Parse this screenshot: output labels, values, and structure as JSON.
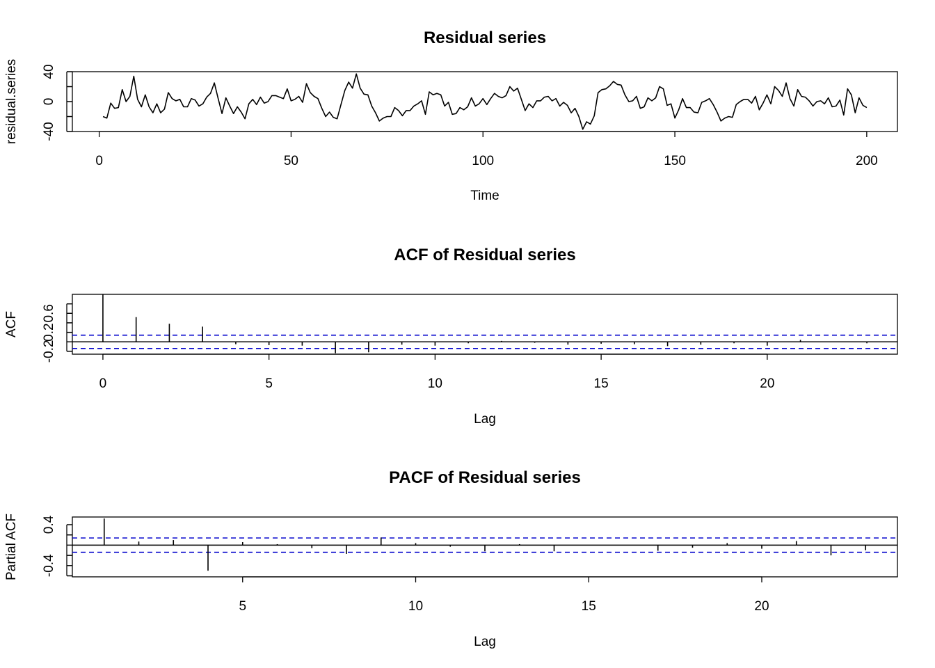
{
  "chart_data": [
    {
      "type": "line",
      "title": "Residual series",
      "xlabel": "Time",
      "ylabel": "residual.series",
      "xlim": [
        -7,
        208
      ],
      "ylim": [
        -40,
        40
      ],
      "xticks": [
        0,
        50,
        100,
        150,
        200
      ],
      "yticks": [
        -40,
        0,
        40
      ],
      "series": [
        {
          "values": [
            -20,
            -22,
            -2,
            -9,
            -8,
            16,
            0,
            7,
            34,
            3,
            -7,
            9,
            -7,
            -15,
            -3,
            -15,
            -10,
            12,
            4,
            1,
            3,
            -7,
            -7,
            4,
            2,
            -6,
            -3,
            6,
            11,
            25,
            4,
            -16,
            5,
            -6,
            -16,
            -7,
            -14,
            -23,
            -3,
            3,
            -4,
            6,
            -2,
            0,
            8,
            8,
            6,
            4,
            17,
            1,
            3,
            7,
            -1,
            24,
            12,
            7,
            4,
            -9,
            -20,
            -14,
            -21,
            -23,
            -4,
            15,
            26,
            18,
            37,
            18,
            10,
            9,
            -6,
            -15,
            -26,
            -22,
            -20,
            -20,
            -8,
            -12,
            -19,
            -12,
            -12,
            -6,
            -3,
            1,
            -17,
            13,
            9,
            11,
            9,
            -6,
            -1,
            -17,
            -16,
            -8,
            -11,
            -7,
            5,
            -6,
            -3,
            4,
            -4,
            4,
            11,
            7,
            5,
            8,
            20,
            14,
            18,
            3,
            -12,
            -3,
            -8,
            1,
            1,
            6,
            7,
            1,
            4,
            -6,
            -1,
            -5,
            -15,
            -9,
            -20,
            -37,
            -27,
            -30,
            -19,
            12,
            16,
            17,
            21,
            27,
            23,
            22,
            9,
            0,
            1,
            7,
            -9,
            -7,
            5,
            1,
            5,
            20,
            17,
            -5,
            -3,
            -22,
            -11,
            4,
            -8,
            -8,
            -14,
            -15,
            -1,
            1,
            4,
            -4,
            -14,
            -26,
            -22,
            -20,
            -21,
            -4,
            0,
            3,
            3,
            -2,
            7,
            -11,
            -2,
            9,
            -3,
            20,
            15,
            7,
            25,
            4,
            -6,
            16,
            7,
            6,
            1,
            -6,
            0,
            1,
            -3,
            5,
            -7,
            -6,
            2,
            -18,
            17,
            9,
            -15,
            5,
            -5,
            -8
          ]
        }
      ]
    },
    {
      "type": "bar",
      "title": "ACF of Residual series",
      "xlabel": "Lag",
      "ylabel": "ACF",
      "xlim": [
        -0.92,
        23.92
      ],
      "ylim": [
        -0.26,
        1.0
      ],
      "xticks": [
        0,
        5,
        10,
        15,
        20
      ],
      "yticks": [
        -0.2,
        0.2,
        0.6
      ],
      "x": [
        0,
        1,
        2,
        3,
        4,
        5,
        6,
        7,
        8,
        9,
        10,
        11,
        12,
        13,
        14,
        15,
        16,
        17,
        18,
        19,
        20,
        21,
        22,
        23
      ],
      "values": [
        1.0,
        0.52,
        0.38,
        0.32,
        -0.05,
        -0.07,
        -0.08,
        -0.24,
        -0.22,
        -0.06,
        -0.08,
        -0.03,
        0.02,
        -0.02,
        -0.06,
        -0.04,
        -0.05,
        -0.09,
        -0.06,
        -0.03,
        -0.08,
        0.04,
        0.0,
        -0.03
      ],
      "conf_band": 0.14
    },
    {
      "type": "bar",
      "title": "PACF of Residual series",
      "xlabel": "Lag",
      "ylabel": "Partial ACF",
      "xlim": [
        0.08,
        23.92
      ],
      "ylim": [
        -0.62,
        0.55
      ],
      "xticks": [
        5,
        10,
        15,
        20
      ],
      "yticks": [
        -0.4,
        0.4
      ],
      "x": [
        1,
        2,
        3,
        4,
        5,
        6,
        7,
        8,
        9,
        10,
        11,
        12,
        13,
        14,
        15,
        16,
        17,
        18,
        19,
        20,
        21,
        22,
        23
      ],
      "values": [
        0.52,
        0.07,
        0.1,
        -0.5,
        0.06,
        0.02,
        -0.06,
        -0.17,
        0.15,
        0.04,
        -0.03,
        -0.12,
        0.02,
        -0.12,
        0.0,
        0.0,
        -0.11,
        -0.05,
        0.04,
        -0.07,
        0.08,
        -0.2,
        -0.1
      ],
      "conf_band": 0.14
    }
  ]
}
